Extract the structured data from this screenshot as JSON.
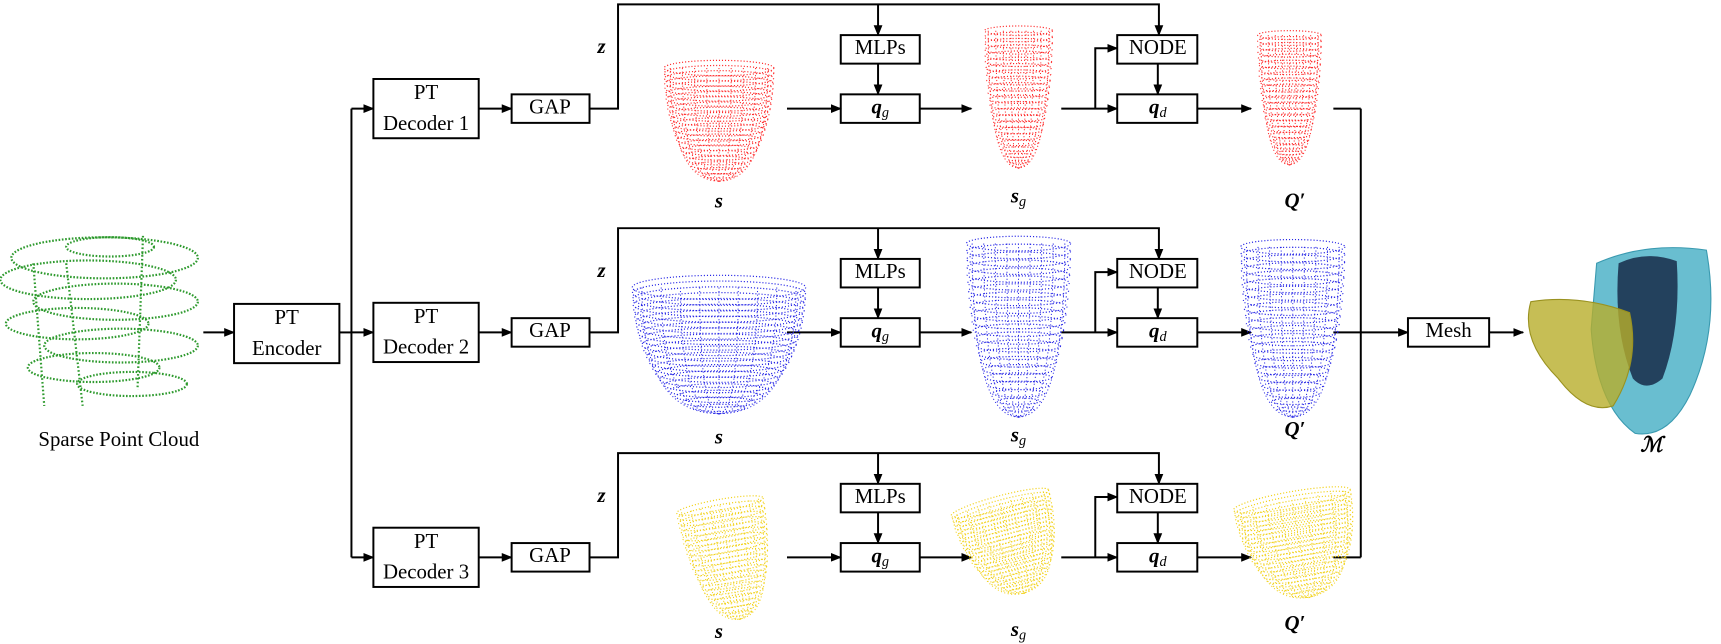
{
  "input_label": "Sparse Point Cloud",
  "encoder": [
    "PT",
    "Encoder"
  ],
  "branches": [
    {
      "decoder": [
        "PT",
        "Decoder 1"
      ],
      "pool": "GAP",
      "latent": "z",
      "mlp": "MLPs",
      "qg": {
        "base": "q",
        "sub": "g"
      },
      "node": "NODE",
      "qd": {
        "base": "q",
        "sub": "d"
      },
      "template": "s",
      "sg": {
        "base": "s",
        "sub": "g"
      },
      "output": "Q′"
    },
    {
      "decoder": [
        "PT",
        "Decoder 2"
      ],
      "pool": "GAP",
      "latent": "z",
      "mlp": "MLPs",
      "qg": {
        "base": "q",
        "sub": "g"
      },
      "node": "NODE",
      "qd": {
        "base": "q",
        "sub": "d"
      },
      "template": "s",
      "sg": {
        "base": "s",
        "sub": "g"
      },
      "output": "Q′"
    },
    {
      "decoder": [
        "PT",
        "Decoder 3"
      ],
      "pool": "GAP",
      "latent": "z",
      "mlp": "MLPs",
      "qg": {
        "base": "q",
        "sub": "g"
      },
      "node": "NODE",
      "qd": {
        "base": "q",
        "sub": "d"
      },
      "template": "s",
      "sg": {
        "base": "s",
        "sub": "g"
      },
      "output": "Q′"
    }
  ],
  "mesh": "Mesh",
  "output_label": "ℳ"
}
